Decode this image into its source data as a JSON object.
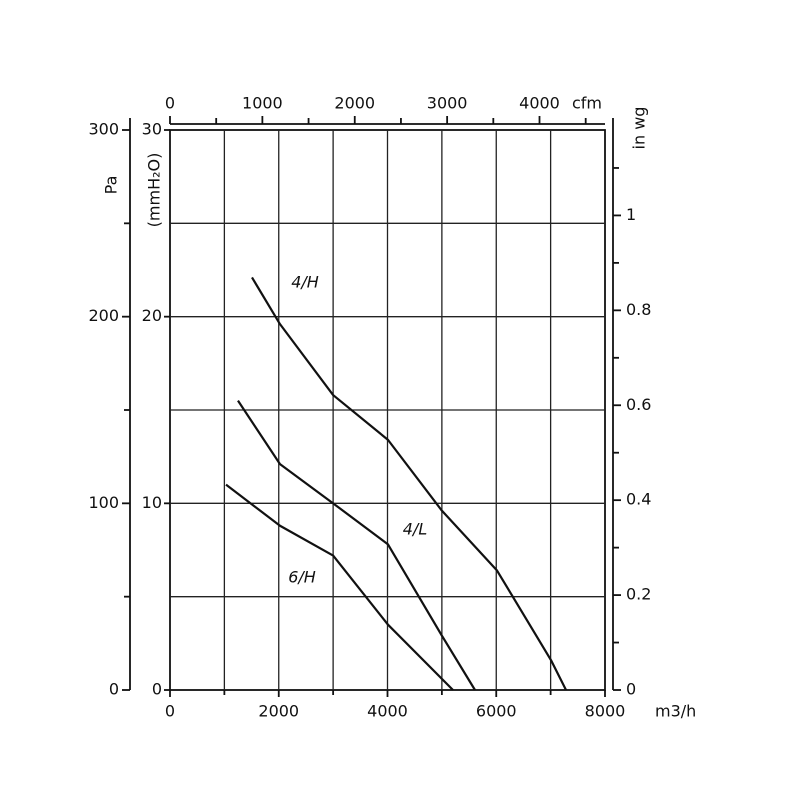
{
  "chart_data": {
    "type": "line",
    "x_label": "m3/h",
    "xlim": [
      0,
      8000
    ],
    "xticks": [
      0,
      2000,
      4000,
      6000,
      8000
    ],
    "xminorticks": [
      1000,
      3000,
      5000,
      7000
    ],
    "y_label": "(mmH₂O)",
    "ylim": [
      0,
      30
    ],
    "yticks": [
      0,
      10,
      20,
      30
    ],
    "grid": true,
    "xgrid": [
      1000,
      2000,
      3000,
      4000,
      5000,
      6000,
      7000
    ],
    "ygrid": [
      5,
      10,
      15,
      20,
      25
    ],
    "pa_axis": {
      "label": "Pa",
      "lim": [
        0,
        300
      ],
      "ticks": [
        0,
        100,
        200,
        300
      ],
      "minor_ticks": [
        50,
        150,
        250
      ]
    },
    "inwg_axis": {
      "label": "in wg",
      "lim": [
        0,
        1.18
      ],
      "ticks": [
        0,
        0.2,
        0.4,
        0.6,
        0.8,
        1
      ],
      "minor_ticks": [
        0.1,
        0.3,
        0.5,
        0.7,
        0.9,
        1.1
      ]
    },
    "cfm_axis": {
      "label": "cfm",
      "lim": [
        0,
        4709
      ],
      "ticks": [
        0,
        1000,
        2000,
        3000,
        4000
      ],
      "minor_ticks": [
        500,
        1500,
        2500,
        3500,
        4500
      ]
    },
    "color": "#111111",
    "series": [
      {
        "name": "4/H",
        "x": [
          1508,
          2023,
          3000,
          4009,
          5002,
          6014,
          7007,
          7283
        ],
        "values": [
          22.1,
          19.6,
          15.8,
          13.4,
          9.6,
          6.4,
          1.6,
          0
        ]
      },
      {
        "name": "4/L",
        "x": [
          1250,
          2023,
          3000,
          4009,
          5002,
          5609
        ],
        "values": [
          15.5,
          12.1,
          10.0,
          7.8,
          2.9,
          0
        ]
      },
      {
        "name": "6/H",
        "x": [
          1030,
          2023,
          3000,
          4009,
          5204
        ],
        "values": [
          11.0,
          8.8,
          7.2,
          3.5,
          0
        ]
      }
    ]
  }
}
